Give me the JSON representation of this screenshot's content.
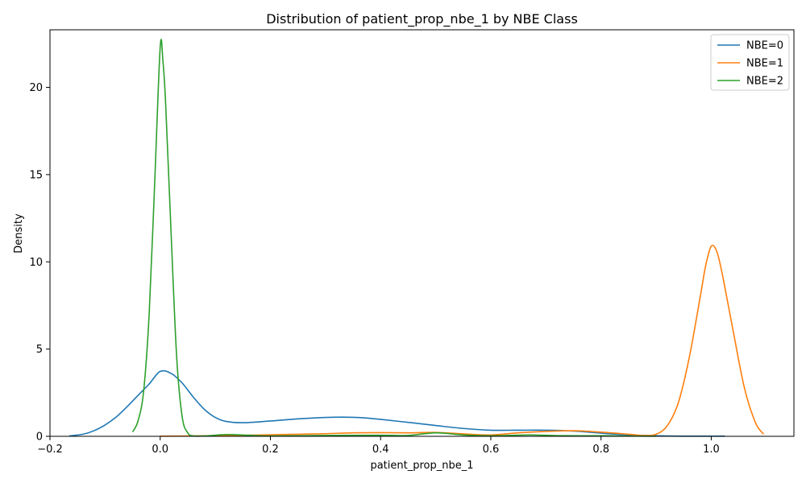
{
  "chart_data": {
    "type": "line",
    "title": "Distribution of patient_prop_nbe_1 by NBE Class",
    "xlabel": "patient_prop_nbe_1",
    "ylabel": "Density",
    "xlim": [
      -0.2,
      1.15
    ],
    "ylim": [
      0,
      23.3
    ],
    "xticks": [
      -0.2,
      0.0,
      0.2,
      0.4,
      0.6,
      0.8,
      1.0
    ],
    "xtick_labels": [
      "−0.2",
      "0.0",
      "0.2",
      "0.4",
      "0.6",
      "0.8",
      "1.0"
    ],
    "yticks": [
      0,
      5,
      10,
      15,
      20
    ],
    "ytick_labels": [
      "0",
      "5",
      "10",
      "15",
      "20"
    ],
    "grid": false,
    "legend_position": "top-right",
    "series": [
      {
        "name": "NBE=0",
        "color": "#1f77b4",
        "points": [
          [
            -0.165,
            0.02
          ],
          [
            -0.14,
            0.12
          ],
          [
            -0.12,
            0.32
          ],
          [
            -0.1,
            0.65
          ],
          [
            -0.08,
            1.1
          ],
          [
            -0.06,
            1.7
          ],
          [
            -0.04,
            2.35
          ],
          [
            -0.02,
            3.0
          ],
          [
            0.0,
            3.72
          ],
          [
            0.02,
            3.6
          ],
          [
            0.04,
            3.05
          ],
          [
            0.06,
            2.25
          ],
          [
            0.08,
            1.55
          ],
          [
            0.1,
            1.08
          ],
          [
            0.12,
            0.85
          ],
          [
            0.15,
            0.78
          ],
          [
            0.2,
            0.88
          ],
          [
            0.25,
            1.0
          ],
          [
            0.3,
            1.08
          ],
          [
            0.33,
            1.1
          ],
          [
            0.37,
            1.06
          ],
          [
            0.4,
            0.97
          ],
          [
            0.45,
            0.8
          ],
          [
            0.5,
            0.62
          ],
          [
            0.55,
            0.45
          ],
          [
            0.6,
            0.35
          ],
          [
            0.65,
            0.35
          ],
          [
            0.7,
            0.35
          ],
          [
            0.75,
            0.3
          ],
          [
            0.8,
            0.18
          ],
          [
            0.85,
            0.08
          ],
          [
            0.9,
            0.03
          ],
          [
            0.95,
            0.01
          ],
          [
            1.0,
            0.01
          ],
          [
            1.025,
            0.01
          ]
        ]
      },
      {
        "name": "NBE=1",
        "color": "#ff7f0e",
        "points": [
          [
            0.0,
            0.01
          ],
          [
            0.05,
            0.02
          ],
          [
            0.1,
            0.03
          ],
          [
            0.15,
            0.06
          ],
          [
            0.2,
            0.09
          ],
          [
            0.25,
            0.12
          ],
          [
            0.3,
            0.15
          ],
          [
            0.35,
            0.2
          ],
          [
            0.4,
            0.21
          ],
          [
            0.45,
            0.2
          ],
          [
            0.5,
            0.22
          ],
          [
            0.55,
            0.14
          ],
          [
            0.6,
            0.08
          ],
          [
            0.65,
            0.2
          ],
          [
            0.7,
            0.28
          ],
          [
            0.75,
            0.32
          ],
          [
            0.8,
            0.24
          ],
          [
            0.85,
            0.12
          ],
          [
            0.88,
            0.05
          ],
          [
            0.9,
            0.12
          ],
          [
            0.92,
            0.6
          ],
          [
            0.94,
            1.9
          ],
          [
            0.96,
            4.5
          ],
          [
            0.98,
            8.0
          ],
          [
            0.99,
            9.8
          ],
          [
            1.0,
            10.9
          ],
          [
            1.01,
            10.6
          ],
          [
            1.02,
            9.3
          ],
          [
            1.04,
            6.0
          ],
          [
            1.06,
            2.8
          ],
          [
            1.08,
            0.8
          ],
          [
            1.095,
            0.12
          ]
        ]
      },
      {
        "name": "NBE=2",
        "color": "#2ca02c",
        "points": [
          [
            -0.05,
            0.25
          ],
          [
            -0.04,
            0.9
          ],
          [
            -0.03,
            2.6
          ],
          [
            -0.02,
            7.0
          ],
          [
            -0.01,
            14.5
          ],
          [
            0.0,
            22.3
          ],
          [
            0.005,
            21.5
          ],
          [
            0.01,
            19.0
          ],
          [
            0.02,
            11.5
          ],
          [
            0.03,
            4.5
          ],
          [
            0.04,
            1.1
          ],
          [
            0.05,
            0.2
          ],
          [
            0.06,
            0.02
          ],
          [
            0.08,
            0.02
          ],
          [
            0.12,
            0.1
          ],
          [
            0.16,
            0.06
          ],
          [
            0.2,
            0.02
          ],
          [
            0.3,
            0.05
          ],
          [
            0.4,
            0.06
          ],
          [
            0.45,
            0.05
          ],
          [
            0.5,
            0.2
          ],
          [
            0.55,
            0.08
          ],
          [
            0.6,
            0.03
          ],
          [
            0.67,
            0.08
          ],
          [
            0.72,
            0.04
          ],
          [
            0.8,
            0.03
          ],
          [
            0.85,
            0.02
          ],
          [
            0.9,
            0.01
          ]
        ]
      }
    ]
  }
}
